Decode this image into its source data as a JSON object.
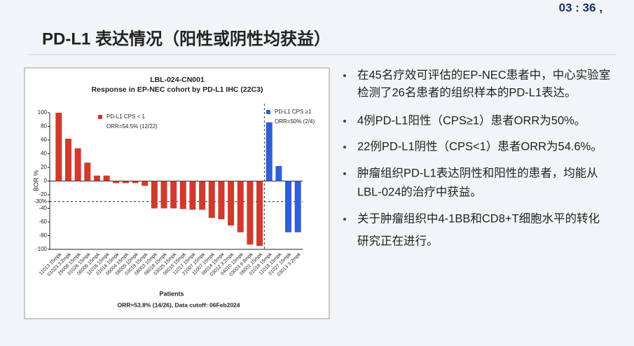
{
  "clock": "03 : 36 ,",
  "slide_title": "PD-L1 表达情况（阳性或阴性均获益）",
  "bullets": [
    [
      "在45名疗效可评估的EP-NEC患者中，中心实验室",
      "检测了26名患者的组织样本的PD-L1表达。"
    ],
    [
      "4例PD-L1阳性（CPS≥1）患者ORR为50%。"
    ],
    [
      "22例PD-L1阴性（CPS<1）患者ORR为54.6%。"
    ],
    [
      "肿瘤组织PD-L1表达阴性和阳性的患者，均能从",
      "LBL-024的治疗中获益。"
    ],
    [
      "关于肿瘤组织中4-1BB和CD8+T细胞水平的转化",
      "研究正在进行。"
    ]
  ],
  "chart_data": {
    "type": "bar",
    "title": "LBL-024-CN001",
    "subtitle": "Response in EP-NEC cohort by PD-L1 IHC (22C3)",
    "x_label": "Patients",
    "y_label": "BOR %",
    "footnote": "ORR=53.8% (14/26),  Data cutoff: 06Feb2024",
    "categories": [
      "11013 15mpk",
      "01023 3.2mpk",
      "25008 15mpk",
      "01026 15mpk",
      "06006 15mpk",
      "11016 15mpk",
      "01016 15mpk",
      "06004 15mpk",
      "08005 10mpk",
      "03019 15mpk",
      "08003 10mpk",
      "06018 15mpk",
      "03025 15mpk",
      "06015 15mpk",
      "11017 15mpk",
      "21007 15mpk",
      "11007 15mpk",
      "06014 15mpk",
      "03012 3.2mpk",
      "04010 15mpk",
      "03003 6.8mpk",
      "08001 15mpk",
      "01018 15mpk",
      "11018 15mpk",
      "01027 15mpk",
      "03013 3.2mpk"
    ],
    "series": [
      {
        "name": "PD-L1 CPS < 1",
        "note": "ORR=54.5% (12/22)",
        "color": "#d03a2c",
        "values": [
          100,
          62,
          48,
          27,
          8,
          8,
          -3,
          -3,
          -3,
          -7,
          -40,
          -40,
          -40,
          -41,
          -42,
          -42,
          -54,
          -56,
          -65,
          -75,
          -93,
          -95,
          null,
          null,
          null,
          null
        ]
      },
      {
        "name": "PD-L1 CPS ≥1",
        "note": "ORR=50% (2/4)",
        "color": "#2f5fd8",
        "values": [
          null,
          null,
          null,
          null,
          null,
          null,
          null,
          null,
          null,
          null,
          null,
          null,
          null,
          null,
          null,
          null,
          null,
          null,
          null,
          null,
          null,
          null,
          86,
          22,
          -75,
          -75
        ]
      }
    ],
    "ylim": [
      -100,
      100
    ],
    "yticks": [
      100,
      80,
      60,
      40,
      20,
      0,
      -20,
      {
        "value": -30,
        "label": "-30%"
      },
      -40,
      -60,
      -80,
      -100
    ]
  }
}
